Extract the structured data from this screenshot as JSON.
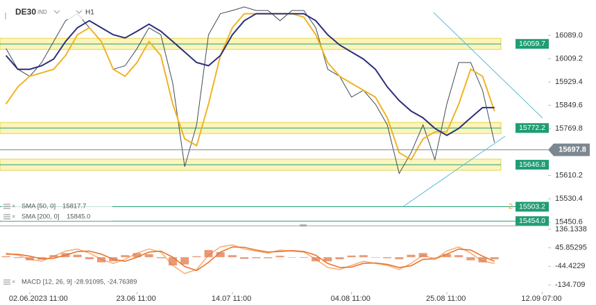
{
  "header": {
    "symbol": "DE30",
    "market": "IND",
    "timeframe": "H1"
  },
  "chart_data": [
    {
      "type": "line",
      "series": [
        {
          "color": "#3d4a57",
          "values": [
            16044,
            15973,
            15949,
            15996,
            16068,
            16139,
            16163,
            16115,
            16068,
            15973,
            15985,
            16044,
            16115,
            16091,
            15925,
            15640,
            15783,
            16091,
            16163,
            16174,
            16186,
            16174,
            16174,
            16139,
            16174,
            16174,
            16115,
            15973,
            15949,
            15878,
            15901,
            15854,
            15783,
            15617,
            15688,
            15783,
            15664,
            15854,
            15996,
            15996,
            15901,
            15723,
            null,
            null,
            null,
            null
          ]
        },
        {
          "name": "SMA [50, 0]",
          "legend_value": 15817.7,
          "color": "#f0b323",
          "values": [
            15854,
            15913,
            15949,
            15961,
            15973,
            16020,
            16091,
            16115,
            16068,
            15973,
            15949,
            15996,
            16068,
            16020,
            15854,
            15735,
            15712,
            15854,
            16020,
            16115,
            16163,
            16163,
            16163,
            16163,
            16163,
            16151,
            16091,
            15996,
            15949,
            15925,
            15901,
            15878,
            15807,
            15688,
            15664,
            15735,
            15759,
            15759,
            15854,
            15973,
            15949,
            15830,
            null,
            null,
            null,
            null
          ]
        },
        {
          "name": "SMA [200, 0]",
          "legend_value": {
            "value": 15845,
            "label": "15845.0"
          },
          "color": "#2b2f7a",
          "values": [
            16020,
            15973,
            15973,
            15985,
            16008,
            16068,
            16115,
            16139,
            16115,
            16091,
            16080,
            16103,
            16127,
            16103,
            16068,
            16032,
            15996,
            15985,
            16020,
            16091,
            16139,
            16163,
            16163,
            16163,
            16163,
            16163,
            16139,
            16091,
            16056,
            16032,
            16008,
            15973,
            15913,
            15866,
            15830,
            15807,
            15771,
            15747,
            15771,
            15807,
            15842,
            15842,
            null,
            null,
            null,
            null
          ]
        }
      ],
      "ylim": [
        15438,
        16186
      ],
      "yticks": [
        {
          "value": 16089,
          "label": "16089.0"
        },
        16009.2,
        15929.4,
        15849.6,
        15769.8,
        15610.2,
        15530.4,
        15450.6
      ],
      "levels": [
        16059.7,
        15772.2,
        15646.8,
        15503.2,
        {
          "value": 15454,
          "label": "15454.0"
        }
      ],
      "zones": [
        true,
        true,
        true,
        false,
        false
      ],
      "level_color": "#1f9d75",
      "zone_color": "#f7e96b",
      "last_price": 15697.8,
      "annotation": "2"
    },
    {
      "type": "macd",
      "legend": "MACD [12, 26, 9] -28.91095, -24.76389",
      "categories": [
        null,
        null,
        "02.06.2023 11:00",
        null,
        null,
        null,
        null,
        null,
        null,
        null,
        null,
        "23.06 11:00",
        null,
        null,
        null,
        null,
        null,
        null,
        null,
        "14.07 11:00",
        null,
        null,
        null,
        null,
        null,
        null,
        null,
        null,
        null,
        "04.08 11:00",
        null,
        null,
        null,
        null,
        null,
        null,
        null,
        "25.08 11:00",
        null,
        null,
        null,
        null,
        null,
        null,
        null,
        "12.09 07:00"
      ],
      "series": [
        {
          "color": "#f6b07a",
          "values": [
            20,
            10,
            -10,
            -20,
            5,
            30,
            40,
            20,
            -10,
            -30,
            -10,
            20,
            40,
            25,
            -40,
            -80,
            -60,
            10,
            50,
            60,
            40,
            30,
            20,
            35,
            30,
            25,
            -10,
            -50,
            -60,
            -40,
            -20,
            -30,
            -40,
            -60,
            -30,
            10,
            -10,
            30,
            50,
            20,
            -20,
            -30,
            null,
            null,
            null,
            null
          ]
        },
        {
          "color": "#e8742c",
          "values": [
            15,
            14,
            5,
            -8,
            -5,
            10,
            28,
            30,
            15,
            -10,
            -20,
            0,
            25,
            30,
            0,
            -45,
            -65,
            -25,
            25,
            50,
            48,
            35,
            25,
            28,
            32,
            28,
            10,
            -30,
            -50,
            -48,
            -30,
            -28,
            -35,
            -50,
            -42,
            -10,
            -8,
            15,
            40,
            35,
            5,
            -20,
            null,
            null,
            null,
            null
          ]
        },
        {
          "type": "histogram",
          "color": "#e0784a",
          "values": [
            5,
            -4,
            -15,
            -12,
            10,
            20,
            12,
            -10,
            -25,
            -20,
            10,
            20,
            15,
            -5,
            -40,
            -35,
            5,
            35,
            25,
            10,
            -8,
            -5,
            -5,
            7,
            -2,
            -3,
            -20,
            -20,
            -10,
            8,
            10,
            -2,
            -5,
            -10,
            12,
            20,
            -2,
            15,
            10,
            -15,
            -25,
            -10,
            null,
            null,
            null,
            null
          ]
        }
      ],
      "ylim": [
        -168.6,
        153.1
      ],
      "yticks": [
        136.1338,
        45.85295,
        -44.4229,
        -134.709
      ]
    }
  ]
}
